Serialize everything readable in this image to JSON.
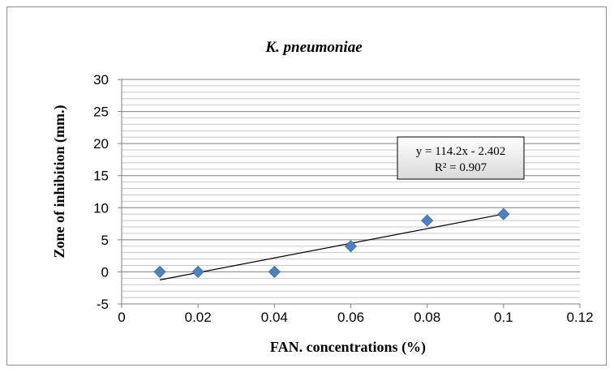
{
  "chart_data": {
    "type": "scatter",
    "title": "K. pneumoniae",
    "xlabel": "FAN. concentrations (%)",
    "ylabel": "Zone of inhibition (mm.)",
    "xlim": [
      0,
      0.12
    ],
    "ylim": [
      -5,
      30
    ],
    "x_ticks": [
      0,
      0.02,
      0.04,
      0.06,
      0.08,
      0.1,
      0.12
    ],
    "x_tick_labels": [
      "0",
      "0.02",
      "0.04",
      "0.06",
      "0.08",
      "0.1",
      "0.12"
    ],
    "y_ticks": [
      -5,
      0,
      5,
      10,
      15,
      20,
      25,
      30
    ],
    "y_tick_labels": [
      "-5",
      "0",
      "5",
      "10",
      "15",
      "20",
      "25",
      "30"
    ],
    "grid": true,
    "marker_color": "#4f81bd",
    "trendline_color": "#000000",
    "series": [
      {
        "x": [
          0.01,
          0.02,
          0.04,
          0.06,
          0.08,
          0.1
        ],
        "y": [
          0,
          0,
          0,
          4,
          8,
          9
        ]
      }
    ],
    "trendline": {
      "slope": 114.2,
      "intercept": -2.402,
      "x_range": [
        0.01,
        0.1
      ],
      "equation": "y = 114.2x - 2.402",
      "r2": "R² = 0.907"
    }
  }
}
